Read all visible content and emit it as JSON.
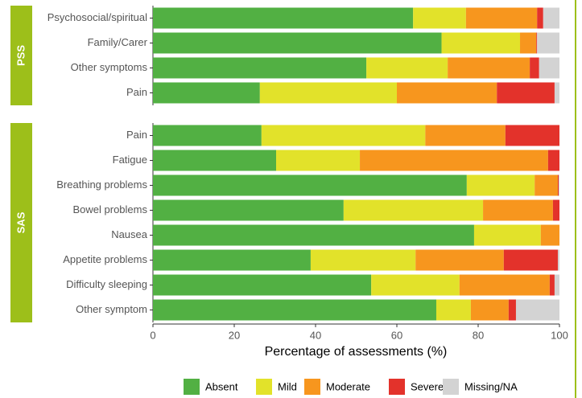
{
  "chart_data": {
    "type": "barh_stacked",
    "xlabel": "Percentage of assessments (%)",
    "xlim": [
      0,
      100
    ],
    "xticks": [
      0,
      20,
      40,
      60,
      80,
      100
    ],
    "groups": [
      {
        "label": "PSS",
        "categories": [
          "Psychosocial/spiritual",
          "Family/Carer",
          "Other symptoms",
          "Pain"
        ]
      },
      {
        "label": "SAS",
        "categories": [
          "Pain",
          "Fatigue",
          "Breathing problems",
          "Bowel problems",
          "Nausea",
          "Appetite problems",
          "Difficulty sleeping",
          "Other symptom"
        ]
      }
    ],
    "series": [
      {
        "name": "Absent",
        "color": "#52b043",
        "values": [
          64,
          71,
          52.5,
          26.3,
          26.7,
          30.3,
          77.2,
          46.9,
          79,
          38.8,
          53.7,
          69.7
        ]
      },
      {
        "name": "Mild",
        "color": "#e2e22a",
        "values": [
          13,
          19.3,
          20,
          33.7,
          40.3,
          20.6,
          16.7,
          34.3,
          16.4,
          25.8,
          21.7,
          8.5
        ]
      },
      {
        "name": "Moderate",
        "color": "#f7961e",
        "values": [
          17.5,
          4,
          20.2,
          24.6,
          19.7,
          46.3,
          5.7,
          17.2,
          4.6,
          21.7,
          22.2,
          9.3
        ]
      },
      {
        "name": "Severe",
        "color": "#e3322b",
        "values": [
          1.5,
          0.2,
          2.3,
          14.2,
          13.3,
          2.8,
          0.2,
          1.6,
          0,
          13.3,
          1.2,
          1.8
        ]
      },
      {
        "name": "Missing/NA",
        "color": "#d3d3d3",
        "values": [
          4,
          5.5,
          5,
          1.2,
          0,
          0,
          0.2,
          0,
          0,
          0.4,
          1.2,
          10.7
        ]
      }
    ]
  }
}
